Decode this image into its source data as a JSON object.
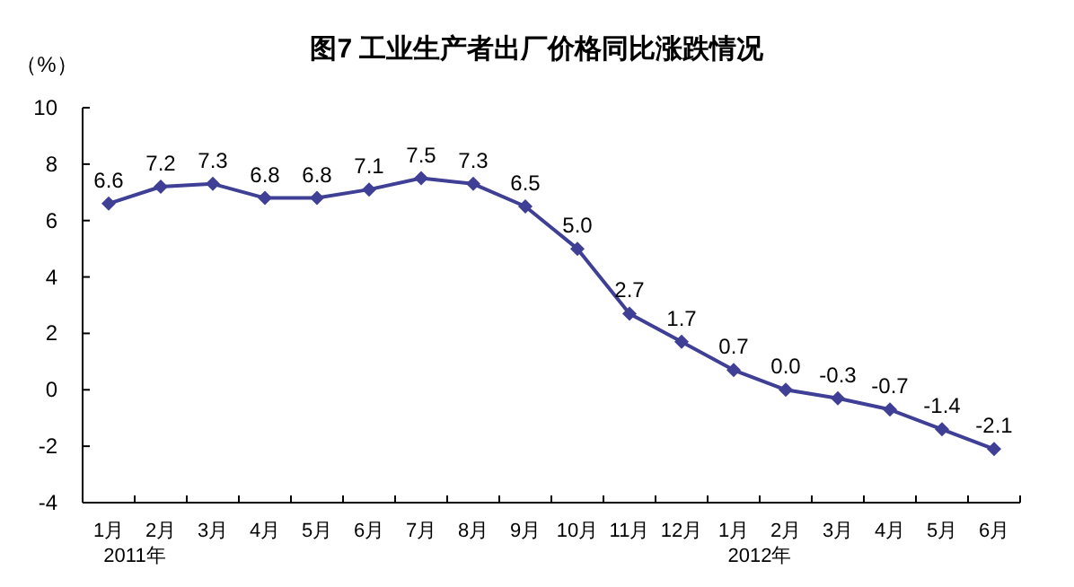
{
  "chart_data": {
    "type": "line",
    "title": "图7 工业生产者出厂价格同比涨跌情况",
    "ylabel": "（%）",
    "categories": [
      "1月",
      "2月",
      "3月",
      "4月",
      "5月",
      "6月",
      "7月",
      "8月",
      "9月",
      "10月",
      "11月",
      "12月",
      "1月",
      "2月",
      "3月",
      "4月",
      "5月",
      "6月"
    ],
    "series": [
      {
        "color": "#3f3f96",
        "values": [
          6.6,
          7.2,
          7.3,
          6.8,
          6.8,
          7.1,
          7.5,
          7.3,
          6.5,
          5.0,
          2.7,
          1.7,
          0.7,
          0.0,
          -0.3,
          -0.7,
          -1.4,
          -2.1
        ]
      }
    ],
    "value_labels": [
      "6.6",
      "7.2",
      "7.3",
      "6.8",
      "6.8",
      "7.1",
      "7.5",
      "7.3",
      "6.5",
      "5.0",
      "2.7",
      "1.7",
      "0.7",
      "0.0",
      "-0.3",
      "-0.7",
      "-1.4",
      "-2.1"
    ],
    "annotations": [
      "2011年",
      "2012年"
    ],
    "ylim": [
      -4,
      10
    ],
    "yticks": [
      -4,
      -2,
      0,
      2,
      4,
      6,
      8,
      10
    ],
    "marker": "diamond",
    "line_style": "solid",
    "grid": false
  }
}
